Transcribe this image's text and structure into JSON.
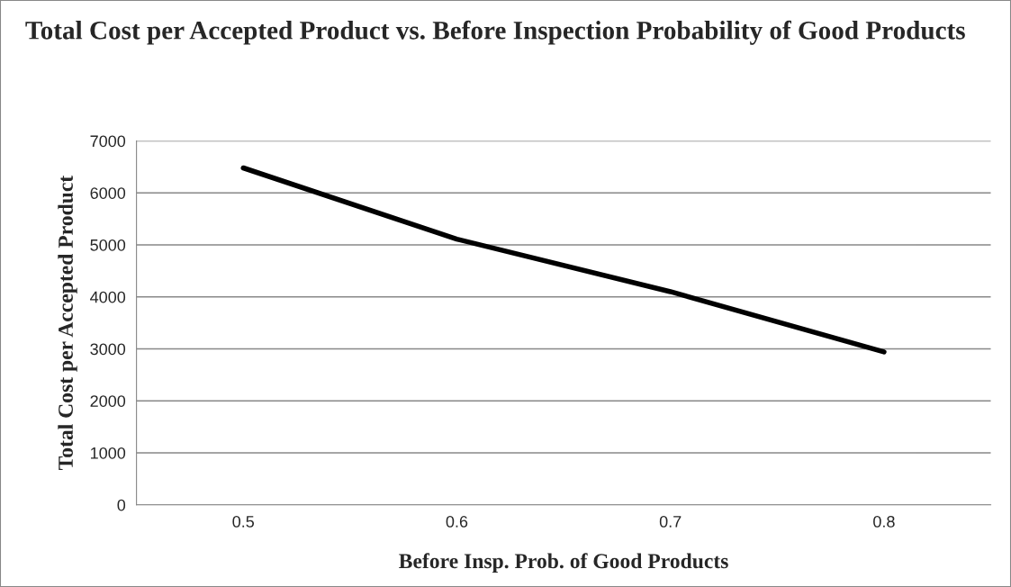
{
  "chart_data": {
    "type": "line",
    "title": "Total Cost per Accepted Product vs. Before Inspection Probability of Good Products",
    "xlabel": "Before Insp. Prob. of Good Products",
    "ylabel": "Total Cost per Accepted Product",
    "categories": [
      "0.5",
      "0.6",
      "0.7",
      "0.8"
    ],
    "series": [
      {
        "color": "#000000",
        "values": [
          6480,
          5110,
          4100,
          2940
        ]
      }
    ],
    "ylim": [
      0,
      7000
    ],
    "yticks": [
      0,
      1000,
      2000,
      3000,
      4000,
      5000,
      6000,
      7000
    ],
    "grid": "y",
    "marker": "none",
    "line_style": "solid"
  }
}
